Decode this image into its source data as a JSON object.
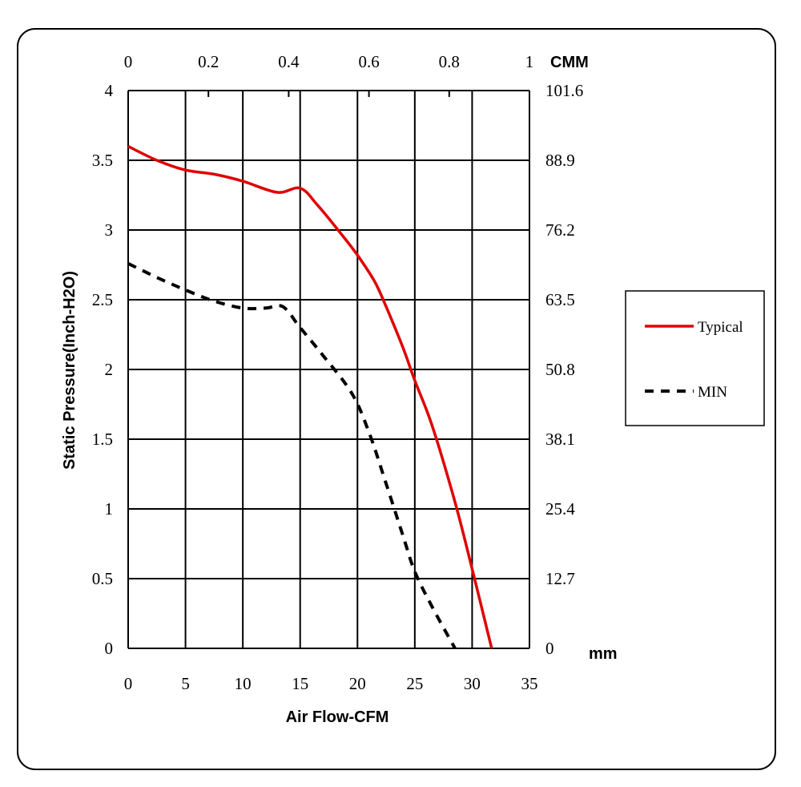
{
  "chart_data": {
    "type": "line",
    "xlabel": "Air Flow-CFM",
    "ylabel": "Static Pressure(Inch-H2O)",
    "x_ticks": [
      "0",
      "5",
      "10",
      "15",
      "20",
      "25",
      "30",
      "35"
    ],
    "y_ticks": [
      "0",
      "0.5",
      "1",
      "1.5",
      "2",
      "2.5",
      "3",
      "3.5",
      "4"
    ],
    "xlim": [
      0,
      35
    ],
    "ylim": [
      0,
      4
    ],
    "grid": true,
    "secondary_x": {
      "label": "CMM",
      "ticks": [
        "0",
        "0.2",
        "0.4",
        "0.6",
        "0.8",
        "1"
      ]
    },
    "secondary_y": {
      "label": "mm",
      "ticks": [
        "0",
        "12.7",
        "25.4",
        "38.1",
        "50.8",
        "63.5",
        "76.2",
        "88.9",
        "101.6"
      ]
    },
    "legend_position": "right",
    "series": [
      {
        "name": "Typical",
        "color": "#e00000",
        "style": "solid",
        "x": [
          0,
          2.5,
          5,
          7.5,
          10,
          13,
          15,
          16.5,
          18.5,
          20,
          21.5,
          22.5,
          24,
          25,
          26.5,
          28.5,
          30,
          31.7
        ],
        "y": [
          3.6,
          3.5,
          3.43,
          3.4,
          3.35,
          3.27,
          3.3,
          3.18,
          2.98,
          2.82,
          2.63,
          2.45,
          2.15,
          1.92,
          1.6,
          1.05,
          0.57,
          0
        ]
      },
      {
        "name": "MIN",
        "color": "#000000",
        "style": "dashed",
        "x": [
          0,
          2.5,
          5,
          7.5,
          10,
          12,
          13.5,
          15,
          17,
          19.5,
          21,
          22.5,
          24,
          25,
          26.5,
          28.5
        ],
        "y": [
          2.76,
          2.66,
          2.57,
          2.49,
          2.44,
          2.44,
          2.45,
          2.3,
          2.1,
          1.83,
          1.55,
          1.18,
          0.8,
          0.55,
          0.3,
          0
        ]
      }
    ]
  }
}
